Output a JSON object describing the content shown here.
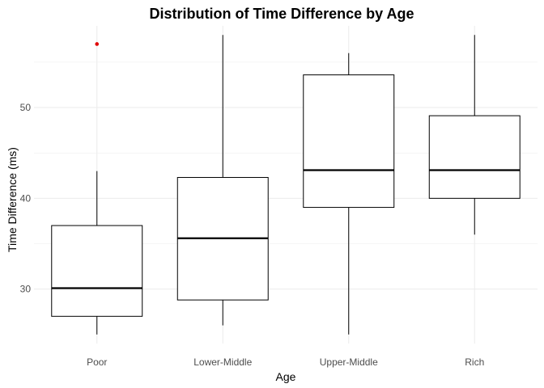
{
  "chart_data": {
    "type": "boxplot",
    "title": "Distribution of Time Difference by Age",
    "xlabel": "Age",
    "ylabel": "Time Difference (ms)",
    "categories": [
      "Poor",
      "Lower-Middle",
      "Upper-Middle",
      "Rich"
    ],
    "ylim": [
      24,
      59
    ],
    "yticks": [
      30,
      40,
      50
    ],
    "grid": true,
    "boxes": [
      {
        "category": "Poor",
        "whisker_low": 25,
        "q1": 27,
        "median": 30.1,
        "q3": 37,
        "whisker_high": 43,
        "outliers": [
          57
        ]
      },
      {
        "category": "Lower-Middle",
        "whisker_low": 26,
        "q1": 28.8,
        "median": 35.6,
        "q3": 42.3,
        "whisker_high": 58,
        "outliers": []
      },
      {
        "category": "Upper-Middle",
        "whisker_low": 25,
        "q1": 39,
        "median": 43.1,
        "q3": 53.6,
        "whisker_high": 56,
        "outliers": []
      },
      {
        "category": "Rich",
        "whisker_low": 36,
        "q1": 40,
        "median": 43.1,
        "q3": 49.1,
        "whisker_high": 58,
        "outliers": []
      }
    ],
    "colors": {
      "box_line": "#000000",
      "outlier": "#e00000",
      "grid": "#ebebeb",
      "tick_label": "#4d4d4d"
    }
  }
}
